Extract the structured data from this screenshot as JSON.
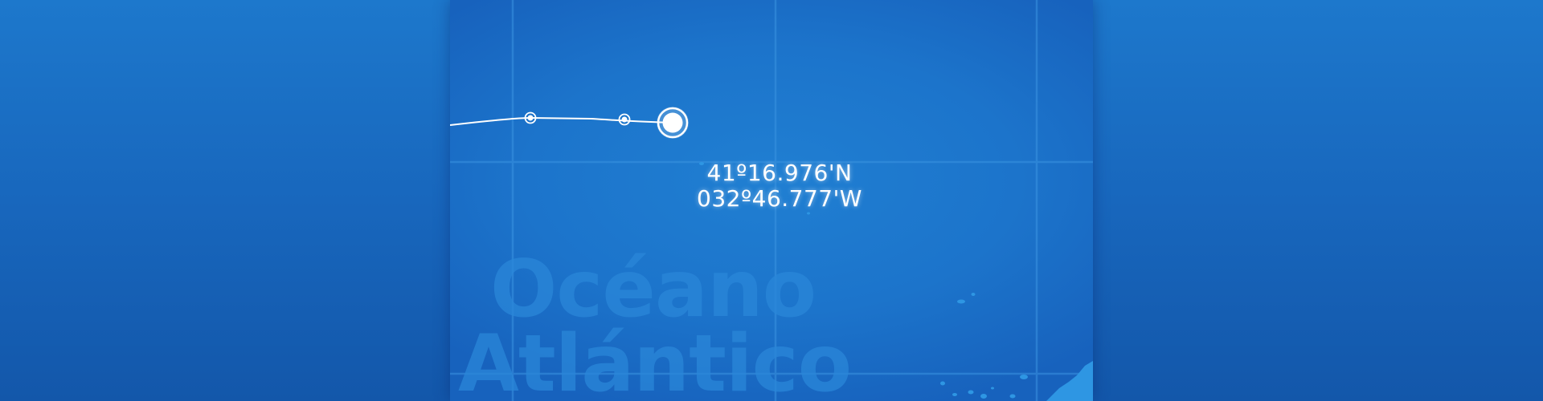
{
  "map": {
    "region_label_line1": "Océano",
    "region_label_line2": "Atlántico",
    "coordinates": {
      "latitude": "41º16.976'N",
      "longitude": "032º46.777'W"
    },
    "track": {
      "waypoint_count": 2,
      "current_position_marker": "current-position-icon"
    },
    "colors": {
      "ocean": "#1c74cb",
      "background": "#1867bd",
      "graticule": "#3a93e0",
      "land": "#2e96e3",
      "track": "#ffffff"
    }
  }
}
